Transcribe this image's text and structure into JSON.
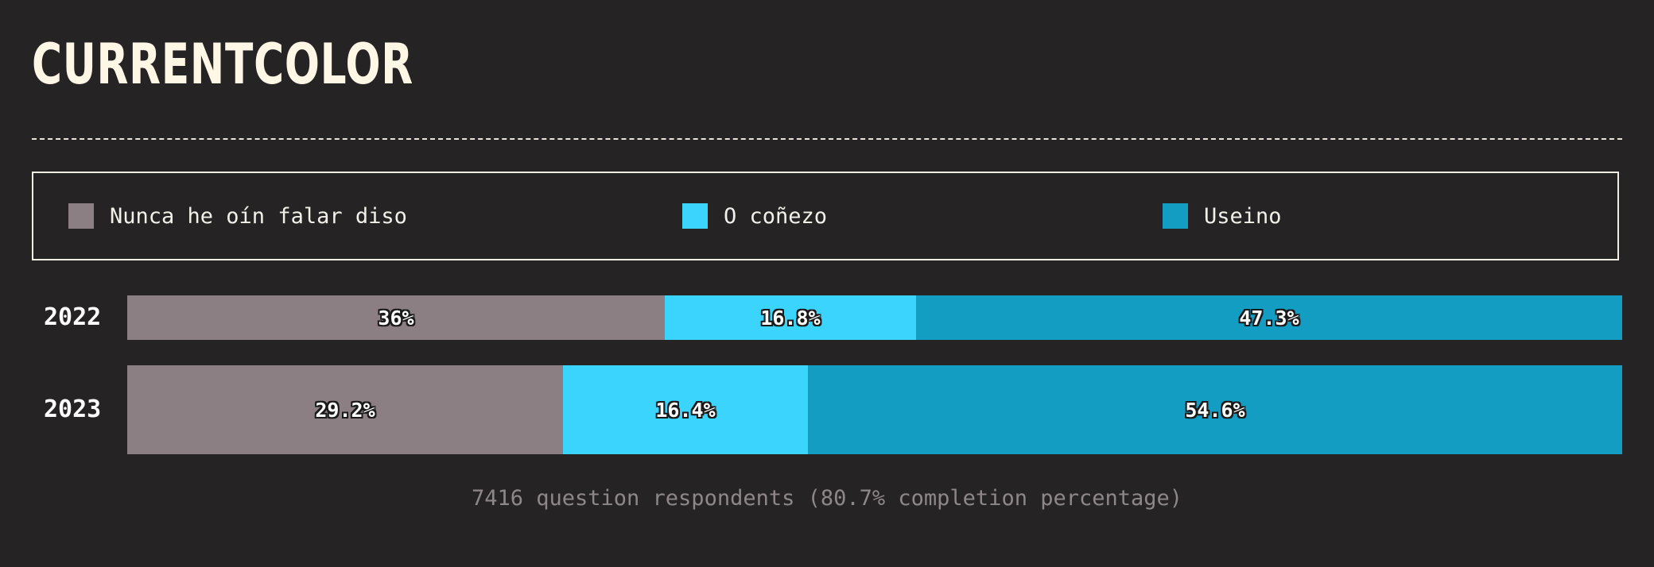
{
  "title": "CURRENTCOLOR",
  "footnote": "7416 question respondents (80.7% completion percentage)",
  "colors": {
    "background": "#262325",
    "never_heard": "#8b7f84",
    "know_it": "#3ad4fc",
    "used_it": "#149dc3"
  },
  "chart_data": {
    "type": "bar",
    "orientation": "horizontal",
    "stacked": true,
    "normalized": true,
    "categories": [
      "2022",
      "2023"
    ],
    "series": [
      {
        "name": "Nunca he oín falar diso",
        "color": "#8b7f84",
        "values": [
          36,
          29.2
        ],
        "labels": [
          "36%",
          "29.2%"
        ]
      },
      {
        "name": "O coñezo",
        "color": "#3ad4fc",
        "values": [
          16.8,
          16.4
        ],
        "labels": [
          "16.8%",
          "16.4%"
        ]
      },
      {
        "name": "Useino",
        "color": "#149dc3",
        "values": [
          47.3,
          54.6
        ],
        "labels": [
          "47.3%",
          "54.6%"
        ]
      }
    ],
    "legend_position": "top",
    "title": "CURRENTCOLOR"
  }
}
